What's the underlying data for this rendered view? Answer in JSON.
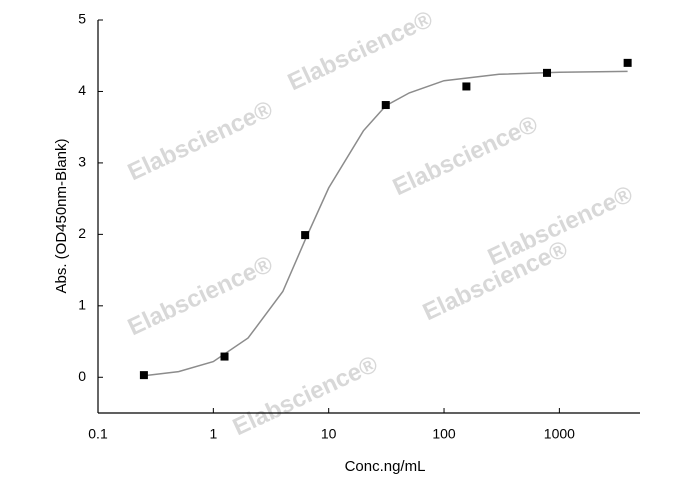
{
  "chart_data": {
    "type": "scatter",
    "xlabel": "Conc.ng/mL",
    "ylabel": "Abs. (OD450nm-Blank)",
    "watermark": "Elabscience®",
    "xscale": "log",
    "xlim": [
      0.1,
      5000
    ],
    "xticks": [
      0.1,
      1,
      10,
      100,
      1000
    ],
    "ylim": [
      -0.5,
      5
    ],
    "yticks": [
      0,
      1,
      2,
      3,
      4,
      5
    ],
    "series": [
      {
        "type": "scatter",
        "color": "#000000",
        "x": [
          0.25,
          1.25,
          6.25,
          31.25,
          156.25,
          781.25,
          3906.25
        ],
        "values": [
          0.03,
          0.29,
          1.99,
          3.81,
          4.07,
          4.26,
          4.4
        ]
      },
      {
        "type": "line",
        "color": "#8c8c8c",
        "x": [
          0.25,
          0.5,
          1,
          2,
          4,
          6.25,
          10,
          20,
          31.25,
          50,
          100,
          300,
          1000,
          3906.25
        ],
        "values": [
          0.02,
          0.08,
          0.22,
          0.55,
          1.2,
          1.92,
          2.65,
          3.45,
          3.8,
          3.98,
          4.15,
          4.24,
          4.27,
          4.28
        ]
      }
    ]
  }
}
